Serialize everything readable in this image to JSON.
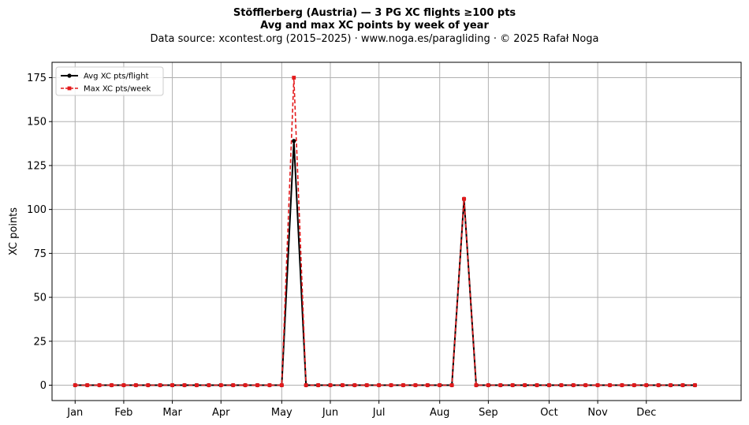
{
  "header": {
    "title": "Stöfflerberg (Austria)  —  3 PG XC flights ≥100 pts",
    "subtitle": "Avg and max XC points by week of year",
    "source": "Data source: xcontest.org (2015–2025)  ·  www.noga.es/paragliding  ·  © 2025 Rafał Noga"
  },
  "chart_data": {
    "type": "line",
    "xlabel": "",
    "ylabel": "XC points",
    "x_unit": "week of year",
    "xlim": [
      -1.9,
      54.8
    ],
    "ylim": [
      -8.75,
      183.75
    ],
    "yticks": [
      0,
      25,
      50,
      75,
      100,
      125,
      150,
      175
    ],
    "xtick_labels": [
      {
        "week": 0,
        "label": "Jan"
      },
      {
        "week": 4,
        "label": "Feb"
      },
      {
        "week": 8,
        "label": "Mar"
      },
      {
        "week": 12,
        "label": "Apr"
      },
      {
        "week": 17,
        "label": "May"
      },
      {
        "week": 21,
        "label": "Jun"
      },
      {
        "week": 25,
        "label": "Jul"
      },
      {
        "week": 30,
        "label": "Aug"
      },
      {
        "week": 34,
        "label": "Sep"
      },
      {
        "week": 39,
        "label": "Oct"
      },
      {
        "week": 43,
        "label": "Nov"
      },
      {
        "week": 47,
        "label": "Dec"
      }
    ],
    "grid": true,
    "legend_position": "top-left",
    "x": [
      0,
      1,
      2,
      3,
      4,
      5,
      6,
      7,
      8,
      9,
      10,
      11,
      12,
      13,
      14,
      15,
      16,
      17,
      18,
      19,
      20,
      21,
      22,
      23,
      24,
      25,
      26,
      27,
      28,
      29,
      30,
      31,
      32,
      33,
      34,
      35,
      36,
      37,
      38,
      39,
      40,
      41,
      42,
      43,
      44,
      45,
      46,
      47,
      48,
      49,
      50,
      51
    ],
    "series": [
      {
        "name": "Avg XC pts/flight",
        "color": "#000000",
        "style": "solid",
        "marker": "circle",
        "values": [
          0,
          0,
          0,
          0,
          0,
          0,
          0,
          0,
          0,
          0,
          0,
          0,
          0,
          0,
          0,
          0,
          0,
          0,
          139,
          0,
          0,
          0,
          0,
          0,
          0,
          0,
          0,
          0,
          0,
          0,
          0,
          0,
          106,
          0,
          0,
          0,
          0,
          0,
          0,
          0,
          0,
          0,
          0,
          0,
          0,
          0,
          0,
          0,
          0,
          0,
          0,
          0
        ]
      },
      {
        "name": "Max XC pts/week",
        "color": "#e41a1c",
        "style": "dashed",
        "marker": "square",
        "values": [
          0,
          0,
          0,
          0,
          0,
          0,
          0,
          0,
          0,
          0,
          0,
          0,
          0,
          0,
          0,
          0,
          0,
          0,
          175,
          0,
          0,
          0,
          0,
          0,
          0,
          0,
          0,
          0,
          0,
          0,
          0,
          0,
          106,
          0,
          0,
          0,
          0,
          0,
          0,
          0,
          0,
          0,
          0,
          0,
          0,
          0,
          0,
          0,
          0,
          0,
          0,
          0
        ]
      }
    ]
  }
}
